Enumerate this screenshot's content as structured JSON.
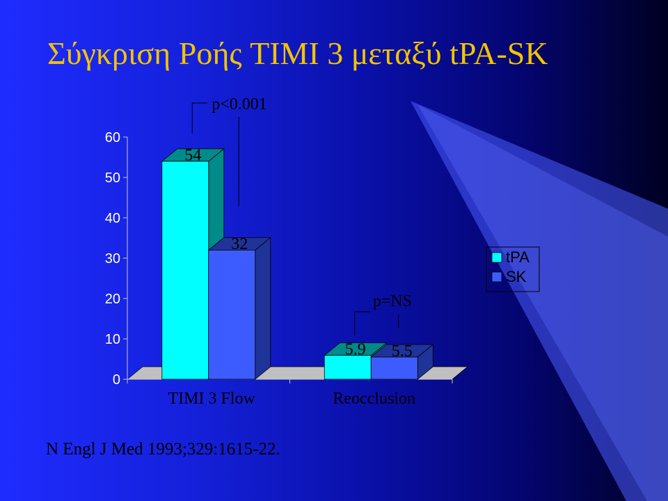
{
  "slide": {
    "title": "Σύγκριση Ροής TIMI 3 μεταξύ tPA-SK",
    "citation": "N Engl J Med 1993;329:1615-22."
  },
  "chart_data": {
    "type": "bar",
    "title": "",
    "categories": [
      "TIMI 3 Flow",
      "Reocclusion"
    ],
    "series": [
      {
        "name": "tPA",
        "values": [
          54,
          5.9
        ],
        "labels": [
          "54",
          "5.9"
        ],
        "color": "#00ffff",
        "side": "#008a8a"
      },
      {
        "name": "SK",
        "values": [
          32,
          5.5
        ],
        "labels": [
          "32",
          "5.5"
        ],
        "color": "#3d5cff",
        "side": "#1f3399"
      }
    ],
    "ylim": [
      0,
      60
    ],
    "yticks": [
      0,
      10,
      20,
      30,
      40,
      50,
      60
    ],
    "grid": false,
    "legend": "right",
    "annotations": [
      {
        "text": "p<0.001",
        "category": 0
      },
      {
        "text": "p=NS",
        "category": 1
      }
    ]
  }
}
